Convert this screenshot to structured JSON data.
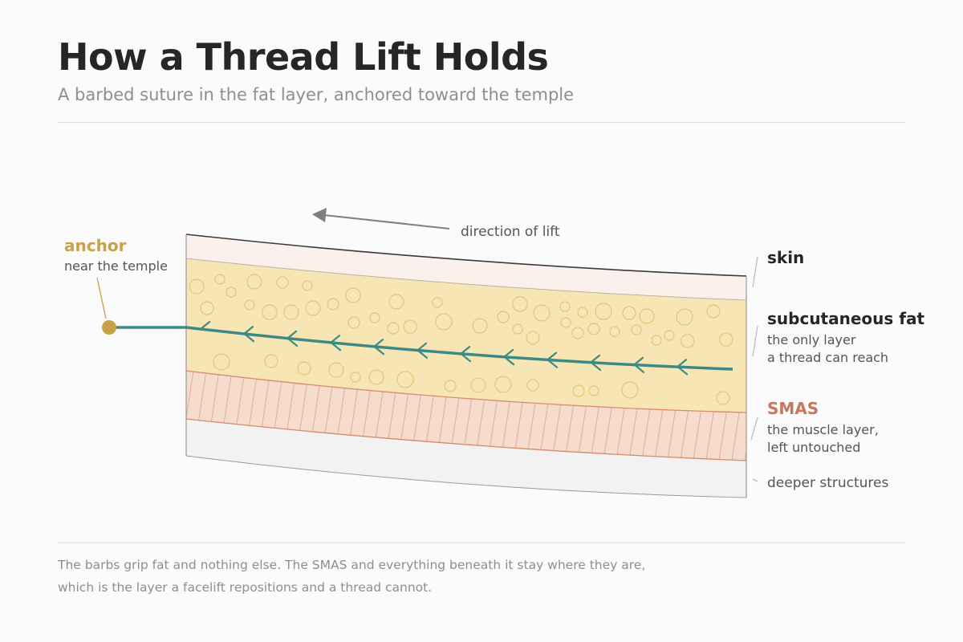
{
  "header": {
    "title": "How a Thread Lift Holds",
    "subtitle": "A barbed suture in the fat layer, anchored toward the temple"
  },
  "diagram": {
    "direction_label": "direction of lift",
    "anchor": {
      "title": "anchor",
      "note": "near the temple"
    },
    "layers": {
      "skin": {
        "title": "skin"
      },
      "fat": {
        "title": "subcutaneous fat",
        "note_line1": "the only layer",
        "note_line2": "a thread can reach"
      },
      "smas": {
        "title": "SMAS",
        "note_line1": "the muscle layer,",
        "note_line2": "left untouched"
      },
      "deep": {
        "title": "deeper structures"
      }
    }
  },
  "colors": {
    "skin_fill": "#faf1ed",
    "fat_fill": "#f7e6b4",
    "fat_bubble": "#e3c47a",
    "smas_fill": "#f6dccd",
    "smas_line": "#d58a6d",
    "deep_fill": "#f2f2f2",
    "thread": "#3c8a85",
    "anchor": "#c9a149",
    "smas_text": "#c9765b",
    "arrow": "#7f7f7f"
  },
  "caption": {
    "line1": "The barbs grip fat and nothing else. The SMAS and everything beneath it stay where they are,",
    "line2": "which is the layer a facelift repositions and a thread cannot."
  }
}
